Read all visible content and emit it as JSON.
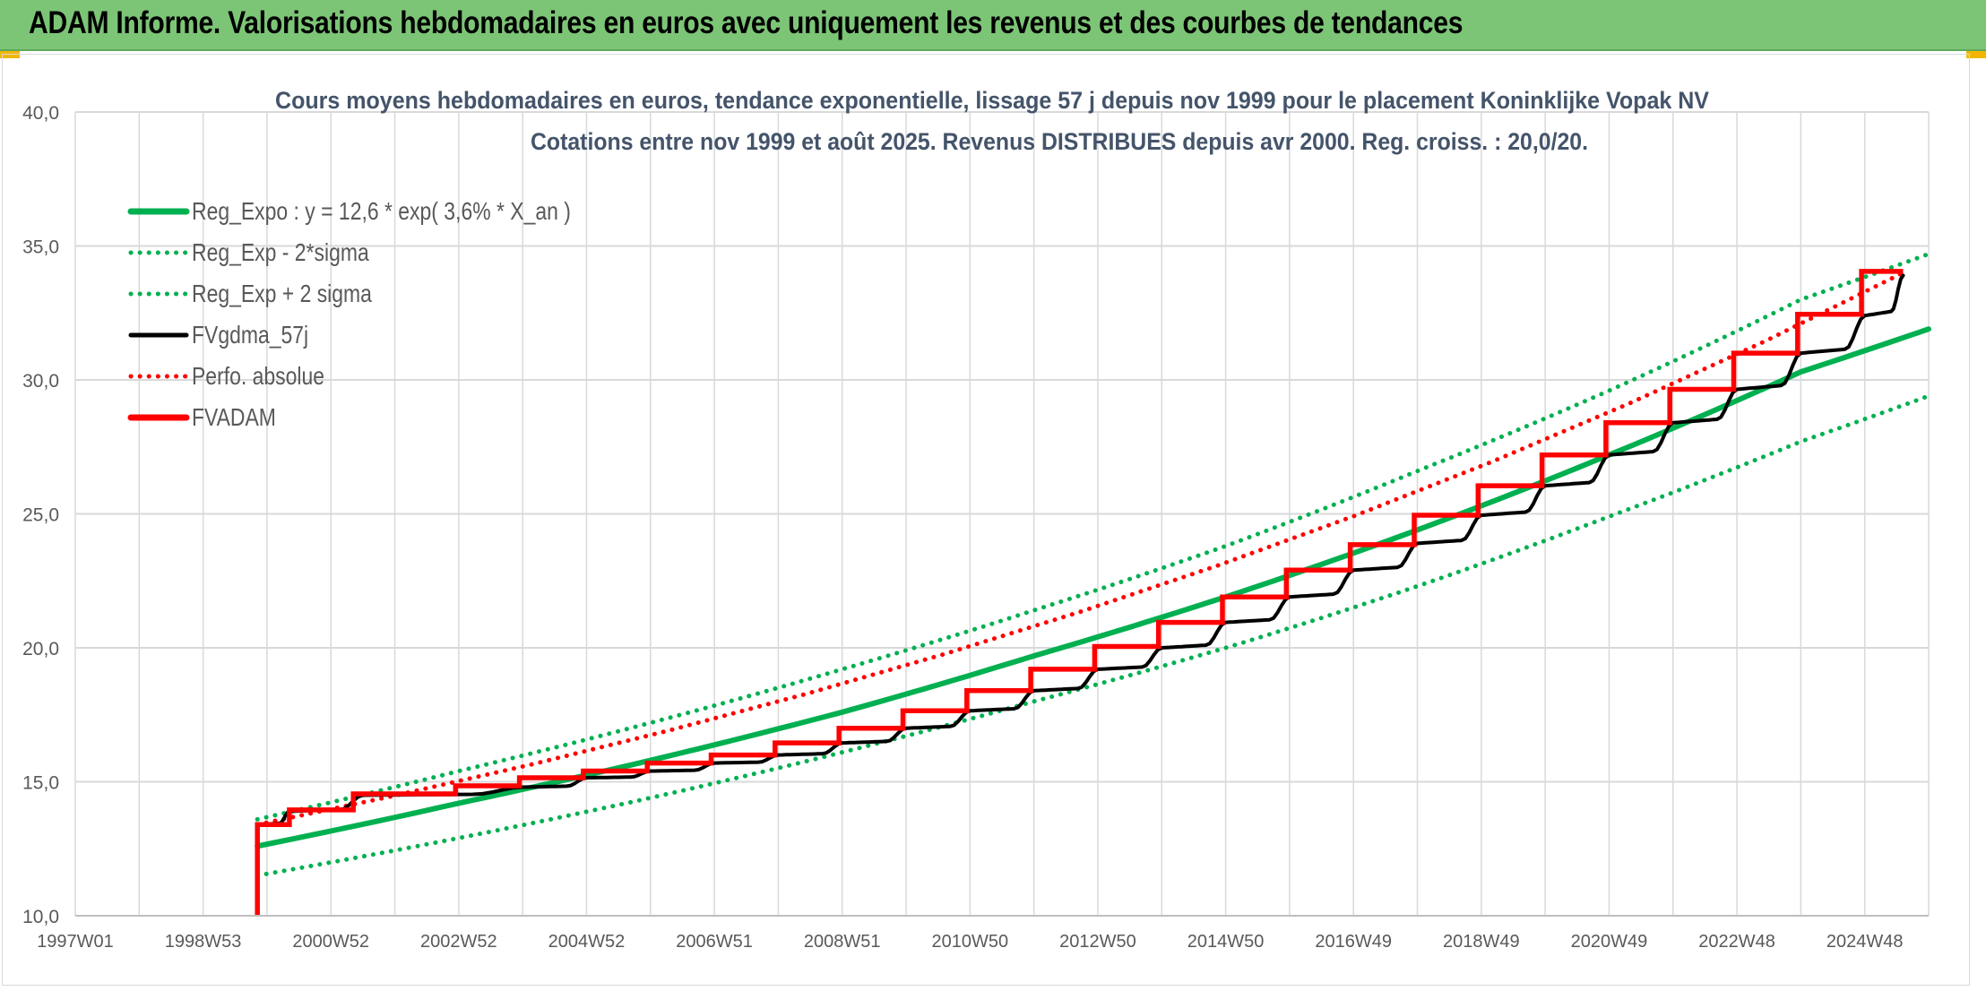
{
  "page": {
    "banner_title": "ADAM Informe. Valorisations hebdomadaires en euros avec uniquement les revenus et des courbes de tendances"
  },
  "colors": {
    "banner_bg": "#7cc576",
    "reg_expo": "#00b050",
    "fvgdma": "#000000",
    "fvadam": "#ff0000",
    "grid": "#d9d9d9",
    "title_text": "#44546a",
    "axis_text": "#595959"
  },
  "chart_data": {
    "type": "line",
    "title": "Cours moyens hebdomadaires en euros, tendance exponentielle, lissage 57 j depuis nov 1999 pour le placement Koninklijke Vopak NV",
    "subtitle": "Cotations entre nov 1999 et août 2025. Revenus DISTRIBUES depuis avr 2000. Reg. croiss. : 20,0/20.",
    "xlabel": "",
    "ylabel": "",
    "ylim": [
      10,
      40
    ],
    "y_ticks": [
      "10,0",
      "15,0",
      "20,0",
      "25,0",
      "30,0",
      "35,0",
      "40,0"
    ],
    "x_range": [
      1997.0,
      2026.0
    ],
    "x_ticks": [
      {
        "label": "1997W01",
        "year": 1997.0
      },
      {
        "label": "1998W53",
        "year": 1999.0
      },
      {
        "label": "2000W52",
        "year": 2001.0
      },
      {
        "label": "2002W52",
        "year": 2003.0
      },
      {
        "label": "2004W52",
        "year": 2005.0
      },
      {
        "label": "2006W51",
        "year": 2007.0
      },
      {
        "label": "2008W51",
        "year": 2009.0
      },
      {
        "label": "2010W50",
        "year": 2011.0
      },
      {
        "label": "2012W50",
        "year": 2013.0
      },
      {
        "label": "2014W50",
        "year": 2015.0
      },
      {
        "label": "2016W49",
        "year": 2017.0
      },
      {
        "label": "2018W49",
        "year": 2019.0
      },
      {
        "label": "2020W49",
        "year": 2021.0
      },
      {
        "label": "2022W48",
        "year": 2023.0
      },
      {
        "label": "2024W48",
        "year": 2025.0
      }
    ],
    "grid": true,
    "legend_position": "top-left",
    "series": [
      {
        "name": "Reg_Expo : y = 12,6 * exp( 3,6% *  X_an )",
        "style": "solid-thick",
        "color": "#00b050",
        "x": [
          1999.85,
          2003.0,
          2006.0,
          2009.0,
          2012.0,
          2015.0,
          2018.0,
          2021.0,
          2024.0,
          2026.0
        ],
        "y": [
          12.6,
          14.2,
          15.8,
          17.6,
          19.7,
          21.9,
          24.4,
          27.2,
          30.3,
          31.9
        ]
      },
      {
        "name": "Reg_Exp - 2*sigma",
        "style": "dotted",
        "color": "#00b050",
        "x": [
          1999.85,
          2003.0,
          2006.0,
          2009.0,
          2012.0,
          2015.0,
          2018.0,
          2021.0,
          2024.0,
          2026.0
        ],
        "y": [
          11.5,
          12.9,
          14.4,
          16.1,
          18.0,
          20.0,
          22.3,
          24.9,
          27.7,
          29.4
        ]
      },
      {
        "name": "Reg_Exp + 2 sigma",
        "style": "dotted",
        "color": "#00b050",
        "x": [
          1999.85,
          2003.0,
          2006.0,
          2009.0,
          2012.0,
          2015.0,
          2018.0,
          2021.0,
          2024.0,
          2026.0
        ],
        "y": [
          13.6,
          15.4,
          17.2,
          19.2,
          21.4,
          23.8,
          26.6,
          29.6,
          33.0,
          34.7
        ]
      },
      {
        "name": "FVgdma_57j",
        "style": "solid",
        "color": "#000000",
        "x": [
          1999.85,
          2000.35,
          2001.5,
          2004.0,
          2005.0,
          2006.0,
          2007.0,
          2008.0,
          2009.0,
          2010.0,
          2011.0,
          2012.0,
          2013.0,
          2014.0,
          2015.0,
          2016.0,
          2017.0,
          2018.0,
          2019.0,
          2020.0,
          2021.0,
          2022.0,
          2023.0,
          2024.0,
          2025.0,
          2025.6
        ],
        "y": [
          13.4,
          13.9,
          14.5,
          14.8,
          15.15,
          15.4,
          15.7,
          16.0,
          16.45,
          17.0,
          17.65,
          18.4,
          19.2,
          20.0,
          20.95,
          21.9,
          22.9,
          23.9,
          24.95,
          26.05,
          27.2,
          28.4,
          29.65,
          31.0,
          32.4,
          33.9
        ]
      },
      {
        "name": "Perfo. absolue",
        "style": "dotted",
        "color": "#ff0000",
        "x": [
          1999.85,
          2025.6
        ],
        "y": [
          13.4,
          34.0
        ]
      },
      {
        "name": "FVADAM",
        "style": "step-thick",
        "color": "#ff0000",
        "x": [
          1999.85,
          1999.85,
          2000.35,
          2001.35,
          2002.95,
          2003.95,
          2004.95,
          2005.95,
          2006.95,
          2007.95,
          2008.95,
          2009.95,
          2010.95,
          2011.95,
          2012.95,
          2013.95,
          2014.95,
          2015.95,
          2016.95,
          2017.95,
          2018.95,
          2019.95,
          2020.95,
          2021.95,
          2022.95,
          2023.95,
          2024.95,
          2025.6
        ],
        "y": [
          10.0,
          13.4,
          13.95,
          14.55,
          14.85,
          15.15,
          15.4,
          15.7,
          16.0,
          16.45,
          17.0,
          17.65,
          18.4,
          19.2,
          20.05,
          20.95,
          21.9,
          22.9,
          23.85,
          24.95,
          26.05,
          27.2,
          28.4,
          29.65,
          31.0,
          32.45,
          34.05,
          34.05
        ]
      }
    ]
  }
}
